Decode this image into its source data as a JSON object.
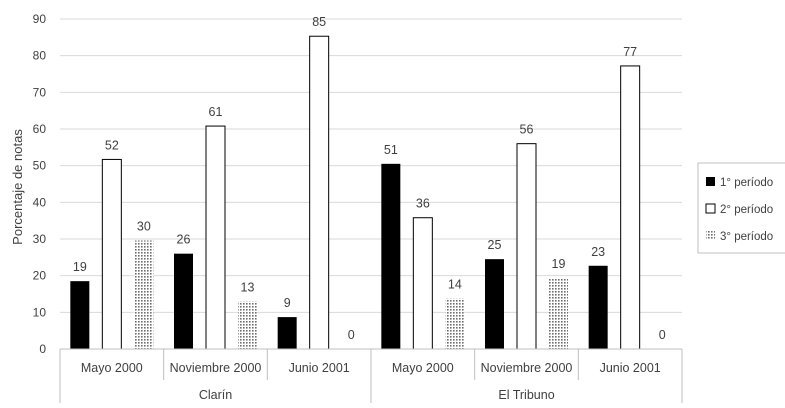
{
  "chart_data": {
    "type": "bar",
    "ylabel": "Porcentaje de notas",
    "xlabel": "",
    "title": "",
    "ylim": [
      0,
      90
    ],
    "ytick_step": 10,
    "ytick_labels": [
      "0",
      "10",
      "20",
      "30",
      "40",
      "50",
      "60",
      "70",
      "80",
      "90"
    ],
    "grid": "horizontal",
    "legend_position": "right",
    "groups": [
      {
        "name": "Clarín",
        "categories": [
          "Mayo  2000",
          "Noviembre 2000",
          "Junio 2001"
        ]
      },
      {
        "name": "El Tribuno",
        "categories": [
          "Mayo  2000",
          "Noviembre 2000",
          "Junio 2001"
        ]
      }
    ],
    "series": [
      {
        "name": "1° período",
        "style": "solid-black",
        "values": [
          19,
          26,
          9,
          51,
          25,
          23
        ]
      },
      {
        "name": "2° período",
        "style": "white-outline",
        "values": [
          52,
          61,
          85,
          36,
          56,
          77
        ]
      },
      {
        "name": "3° período",
        "style": "dotted-gray",
        "values": [
          30,
          13,
          0,
          14,
          19,
          0
        ]
      }
    ],
    "bar_heights_estimated": {
      "1° período": [
        18.5,
        26,
        8.7,
        50.5,
        24.5,
        22.7
      ],
      "2° período": [
        51.7,
        60.8,
        85.3,
        35.8,
        56,
        77.2
      ],
      "3° período": [
        29.6,
        13,
        0,
        13.8,
        19.3,
        0
      ]
    },
    "colors": {
      "solid": "#000000",
      "outline": "#000000",
      "grid": "#d9d9d9",
      "axis": "#bfbfbf",
      "text": "#404040"
    }
  }
}
